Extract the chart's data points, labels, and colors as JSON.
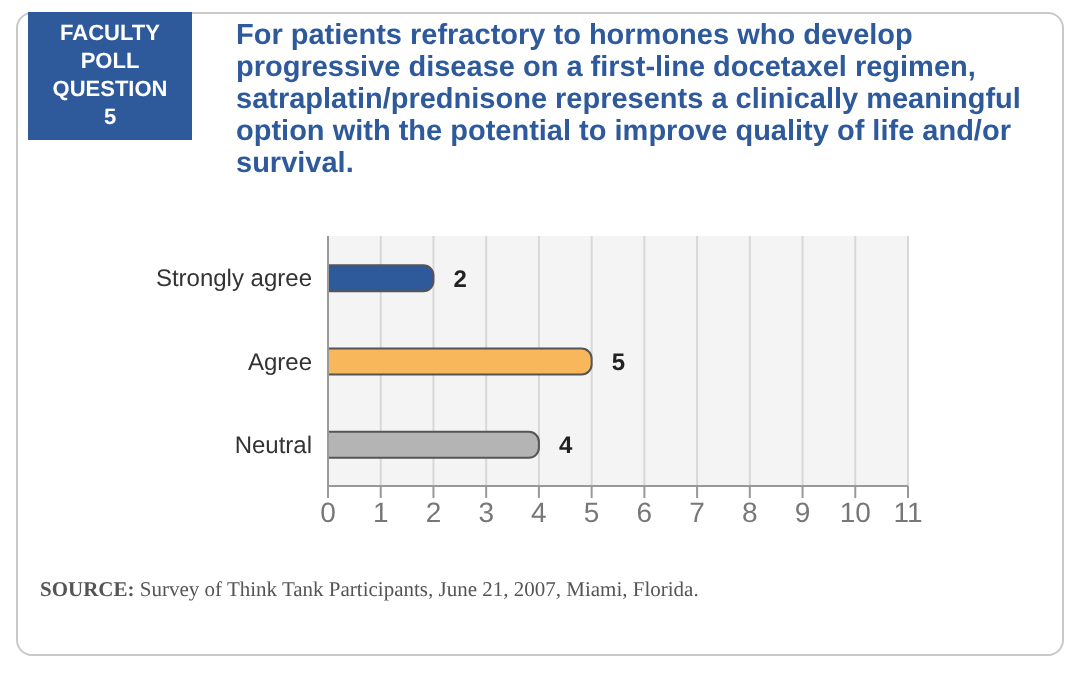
{
  "chart_data": {
    "type": "bar",
    "orientation": "horizontal",
    "title": "For patients refractory to hormones who develop progressive disease on a first-line docetaxel regimen, satraplatin/prednisone represents a clinically meaningful option with the potential to improve quality of life and/or survival.",
    "categories": [
      "Strongly agree",
      "Agree",
      "Neutral"
    ],
    "values": [
      2,
      5,
      4
    ],
    "colors": [
      "#2e5a9c",
      "#f7b75a",
      "#b4b4b4"
    ],
    "xlim": [
      0,
      11
    ],
    "xticks": [
      0,
      1,
      2,
      3,
      4,
      5,
      6,
      7,
      8,
      9,
      10,
      11
    ],
    "grid": "x",
    "data_labels": true,
    "annotations": [
      "FACULTY POLL QUESTION 5",
      "SOURCE: Survey of Think Tank Participants, June 21, 2007, Miami, Florida."
    ]
  }
}
